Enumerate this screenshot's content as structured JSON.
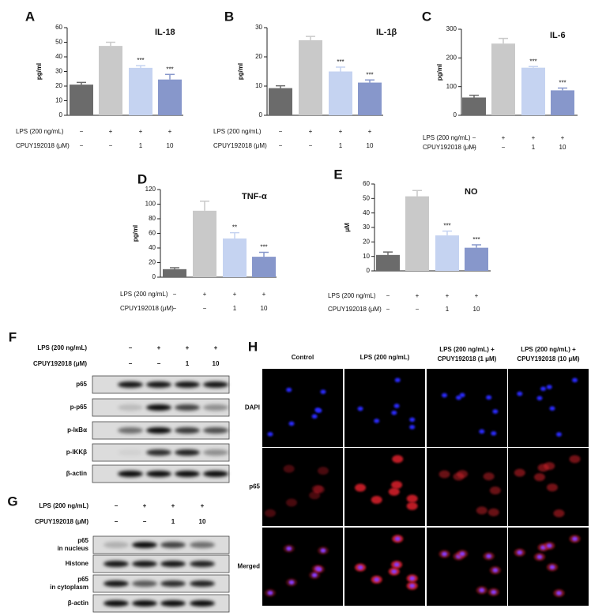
{
  "chart_data": [
    {
      "type": "bar",
      "panel": "A",
      "title": "IL-18",
      "y_label": "pg/ml",
      "values": [
        21,
        47.5,
        32.5,
        24.5
      ],
      "errors": [
        1.5,
        2.5,
        1.5,
        3.5
      ],
      "colors": [
        "#6b6b6b",
        "#c9c9c9",
        "#c5d3f1",
        "#8797cb"
      ],
      "annotations": [
        null,
        null,
        "***",
        "***"
      ],
      "ylim": [
        0,
        60
      ],
      "yticks": [
        0,
        10,
        20,
        30,
        40,
        50,
        60
      ],
      "treatments": [
        {
          "label": "LPS (200 ng/mL)",
          "values": [
            "−",
            "+",
            "+",
            "+"
          ]
        },
        {
          "label": "CPUY192018 (μM)",
          "values": [
            "−",
            "−",
            "1",
            "10"
          ]
        }
      ]
    },
    {
      "type": "bar",
      "panel": "B",
      "title": "IL-1β",
      "y_label": "pg/ml",
      "values": [
        9.3,
        25.7,
        15,
        11.2
      ],
      "errors": [
        0.8,
        1.3,
        1.5,
        0.9
      ],
      "colors": [
        "#6b6b6b",
        "#c9c9c9",
        "#c5d3f1",
        "#8797cb"
      ],
      "annotations": [
        null,
        null,
        "***",
        "***"
      ],
      "ylim": [
        0,
        30
      ],
      "yticks": [
        0,
        10,
        20,
        30
      ],
      "treatments": [
        {
          "label": "LPS (200 ng/mL)",
          "values": [
            "−",
            "+",
            "+",
            "+"
          ]
        },
        {
          "label": "CPUY192018 (μM)",
          "values": [
            "−",
            "−",
            "1",
            "10"
          ]
        }
      ]
    },
    {
      "type": "bar",
      "panel": "C",
      "title": "IL-6",
      "y_label": "pg/ml",
      "values": [
        62,
        250,
        166,
        87
      ],
      "errors": [
        8,
        18,
        4,
        8
      ],
      "colors": [
        "#6b6b6b",
        "#c9c9c9",
        "#c5d3f1",
        "#8797cb"
      ],
      "annotations": [
        null,
        null,
        "***",
        "***"
      ],
      "ylim": [
        0,
        300
      ],
      "yticks": [
        0,
        100,
        200,
        300
      ],
      "treatments": [
        {
          "label": "LPS (200 ng/mL)",
          "values": [
            "−",
            "+",
            "+",
            "+"
          ]
        },
        {
          "label": "CPUY192018 (μM)",
          "values": [
            "−",
            "−",
            "1",
            "10"
          ]
        }
      ]
    },
    {
      "type": "bar",
      "panel": "D",
      "title": "TNF-α",
      "y_label": "pg/ml",
      "values": [
        11,
        91,
        53,
        28
      ],
      "errors": [
        2,
        13,
        8,
        6
      ],
      "colors": [
        "#6b6b6b",
        "#c9c9c9",
        "#c5d3f1",
        "#8797cb"
      ],
      "annotations": [
        null,
        null,
        "**",
        "***"
      ],
      "ylim": [
        0,
        120
      ],
      "yticks": [
        0,
        20,
        40,
        60,
        80,
        100,
        120
      ],
      "treatments": [
        {
          "label": "LPS (200 ng/mL)",
          "values": [
            "−",
            "+",
            "+",
            "+"
          ]
        },
        {
          "label": "CPUY192018 (μM)",
          "values": [
            "−",
            "−",
            "1",
            "10"
          ]
        }
      ]
    },
    {
      "type": "bar",
      "panel": "E",
      "title": "NO",
      "y_label": "μM",
      "values": [
        11,
        51.5,
        24.5,
        16
      ],
      "errors": [
        2,
        4,
        3,
        2
      ],
      "colors": [
        "#6b6b6b",
        "#c9c9c9",
        "#c5d3f1",
        "#8797cb"
      ],
      "annotations": [
        null,
        null,
        "***",
        "***"
      ],
      "ylim": [
        0,
        60
      ],
      "yticks": [
        0,
        10,
        20,
        30,
        40,
        50,
        60
      ],
      "treatments": [
        {
          "label": "LPS (200 ng/mL)",
          "values": [
            "−",
            "+",
            "+",
            "+"
          ]
        },
        {
          "label": "CPUY192018 (μM)",
          "values": [
            "−",
            "−",
            "1",
            "10"
          ]
        }
      ]
    }
  ],
  "blots": [
    {
      "panel": "F",
      "treatments": [
        {
          "label": "LPS (200 ng/mL)",
          "values": [
            "−",
            "+",
            "+",
            "+"
          ]
        },
        {
          "label": "CPUY192018 (μM)",
          "values": [
            "−",
            "−",
            "1",
            "10"
          ]
        }
      ],
      "rows": [
        [
          "p65"
        ],
        [
          "p-p65"
        ],
        [
          "p-IκBα"
        ],
        [
          "p-IKKβ"
        ],
        [
          "β-actin"
        ]
      ]
    },
    {
      "panel": "G",
      "treatments": [
        {
          "label": "LPS (200 ng/mL)",
          "values": [
            "−",
            "+",
            "+",
            "+"
          ]
        },
        {
          "label": "CPUY192018 (μM)",
          "values": [
            "−",
            "−",
            "1",
            "10"
          ]
        }
      ],
      "rows": [
        [
          "p65",
          "in nucleus"
        ],
        [
          "Histone"
        ],
        [
          "p65",
          "in cytoplasm"
        ],
        [
          "β-actin"
        ]
      ]
    }
  ],
  "images": {
    "panel": "H",
    "columns": [
      [
        "Control"
      ],
      [
        "LPS (200 ng/mL)"
      ],
      [
        "LPS (200 ng/mL) +",
        "CPUY192018 (1 μM)"
      ],
      [
        "LPS (200 ng/mL) +",
        "CPUY192018 (10 μM)"
      ]
    ],
    "rows": [
      "DAPI",
      "p65",
      "Merged"
    ]
  }
}
